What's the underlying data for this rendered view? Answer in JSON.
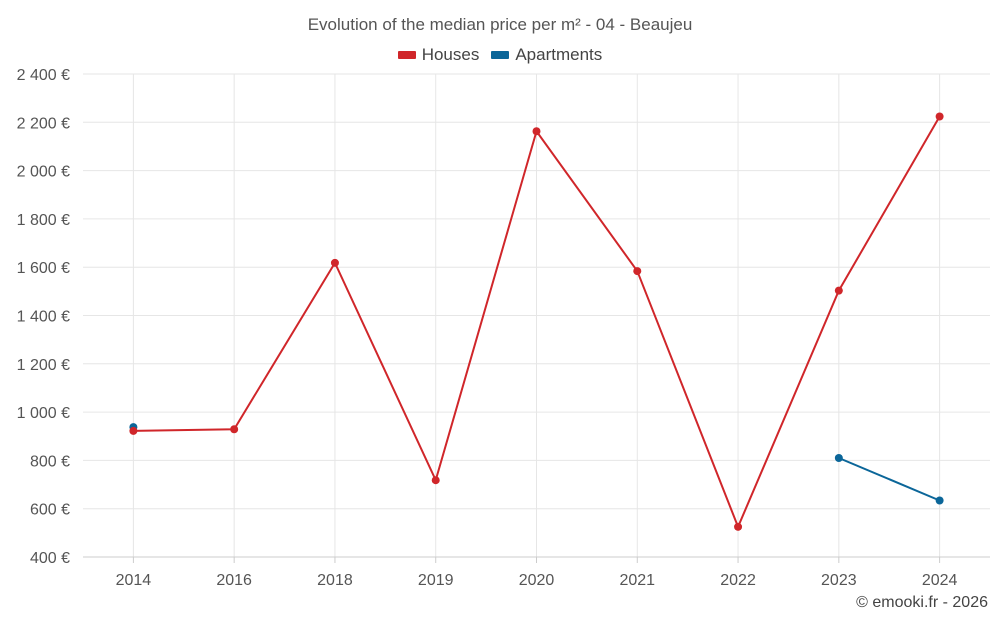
{
  "chart_data": {
    "type": "line",
    "title": "Evolution of the median price per m² - 04 - Beaujeu",
    "categories": [
      "2014",
      "2016",
      "2018",
      "2019",
      "2020",
      "2021",
      "2022",
      "2023",
      "2024"
    ],
    "series": [
      {
        "name": "Houses",
        "color": "#d0262a",
        "values": [
          922,
          929,
          1618,
          718,
          2163,
          1584,
          525,
          1503,
          2224
        ]
      },
      {
        "name": "Apartments",
        "color": "#0b6699",
        "values": [
          938,
          null,
          null,
          null,
          null,
          null,
          null,
          810,
          634
        ]
      }
    ],
    "ylim": [
      400,
      2400
    ],
    "yticks": [
      400,
      600,
      800,
      1000,
      1200,
      1400,
      1600,
      1800,
      2000,
      2200,
      2400
    ],
    "ytick_labels": [
      "400 €",
      "600 €",
      "800 €",
      "1 000 €",
      "1 200 €",
      "1 400 €",
      "1 600 €",
      "1 800 €",
      "2 000 €",
      "2 200 €",
      "2 400 €"
    ],
    "grid": true,
    "legend_position": "top-center"
  },
  "credit": "© emooki.fr - 2026"
}
